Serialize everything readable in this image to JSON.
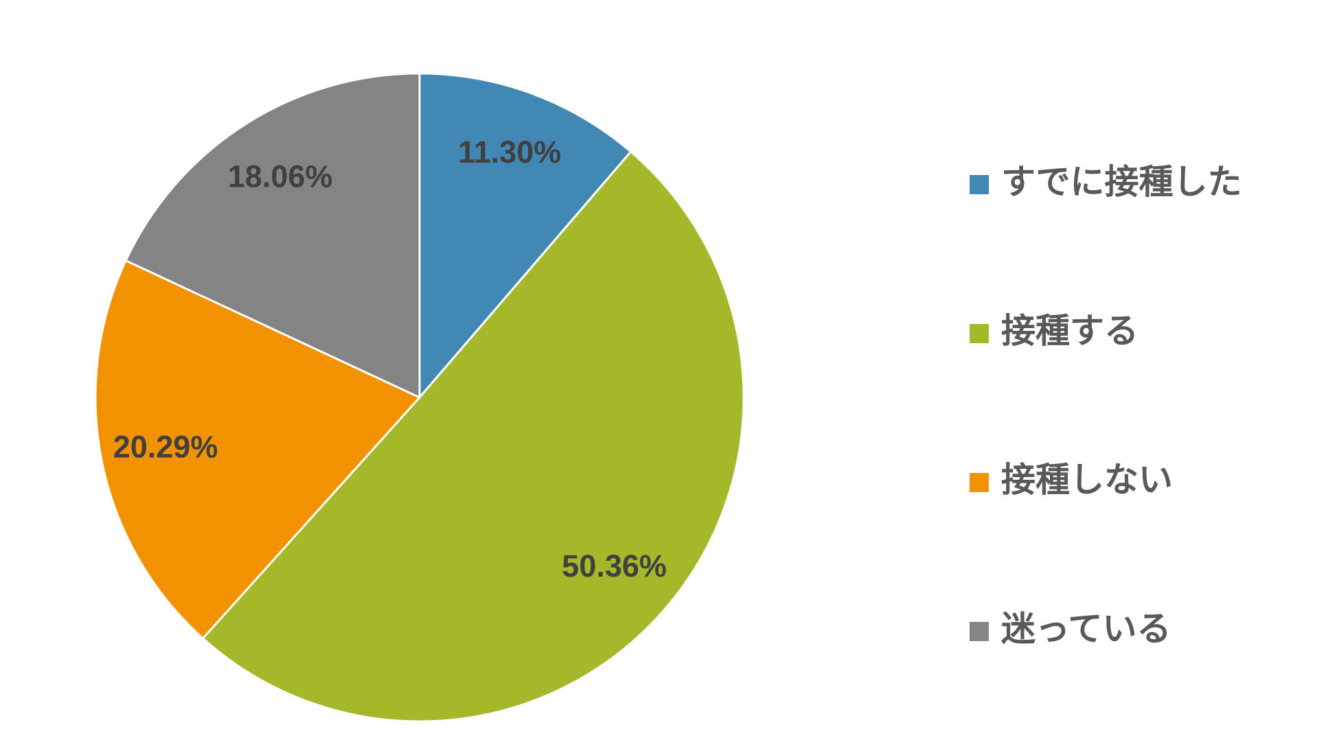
{
  "chart_data": {
    "type": "pie",
    "categories": [
      "すでに接種した",
      "接種する",
      "接種しない",
      "迷っている"
    ],
    "values": [
      11.3,
      50.36,
      20.29,
      18.06
    ],
    "value_labels": [
      "11.30%",
      "50.36%",
      "20.29%",
      "18.06%"
    ],
    "colors": [
      "#4189b4",
      "#a5b82a",
      "#f39200",
      "#848484"
    ],
    "legend": "right"
  }
}
